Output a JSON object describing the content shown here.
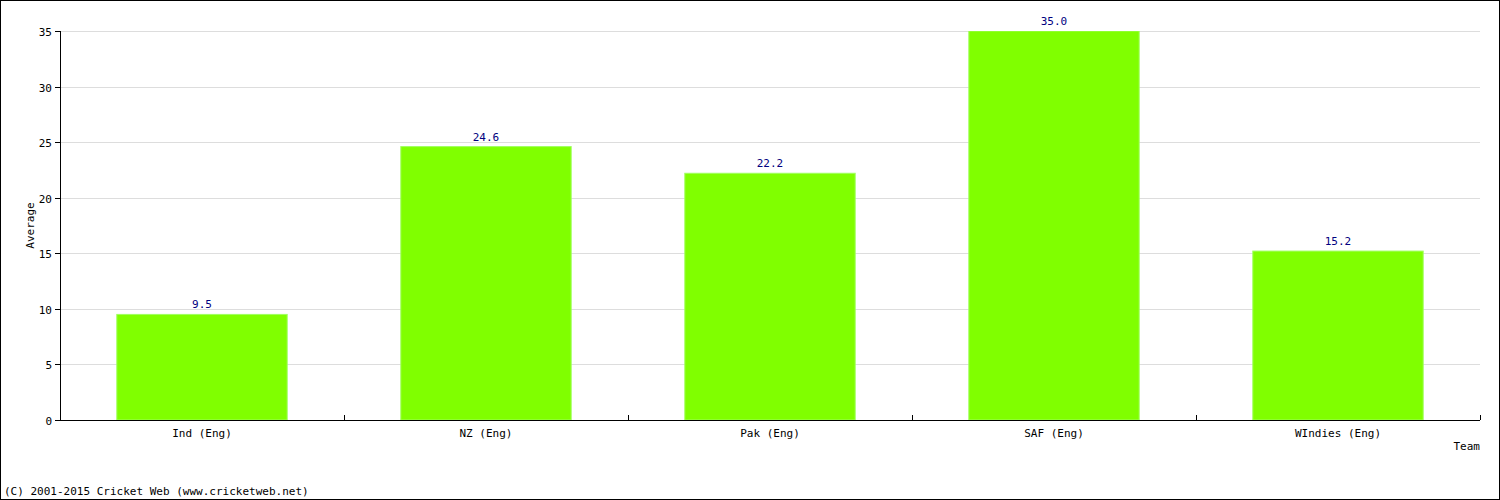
{
  "chart_data": {
    "type": "bar",
    "x_label": "Team",
    "y_label": "Average",
    "categories": [
      "Ind (Eng)",
      "NZ (Eng)",
      "Pak (Eng)",
      "SAF (Eng)",
      "WIndies (Eng)"
    ],
    "values": [
      9.5,
      24.6,
      22.2,
      35.0,
      15.2
    ],
    "value_labels": [
      "9.5",
      "24.6",
      "22.2",
      "35.0",
      "15.2"
    ],
    "color": "#80ff00",
    "ylim": [
      0,
      35
    ],
    "yticks": [
      0,
      5,
      10,
      15,
      20,
      25,
      30,
      35
    ],
    "grid": true,
    "data_labels": true,
    "annotations": [
      "(C) 2001-2015 Cricket Web (www.cricketweb.net)"
    ]
  }
}
